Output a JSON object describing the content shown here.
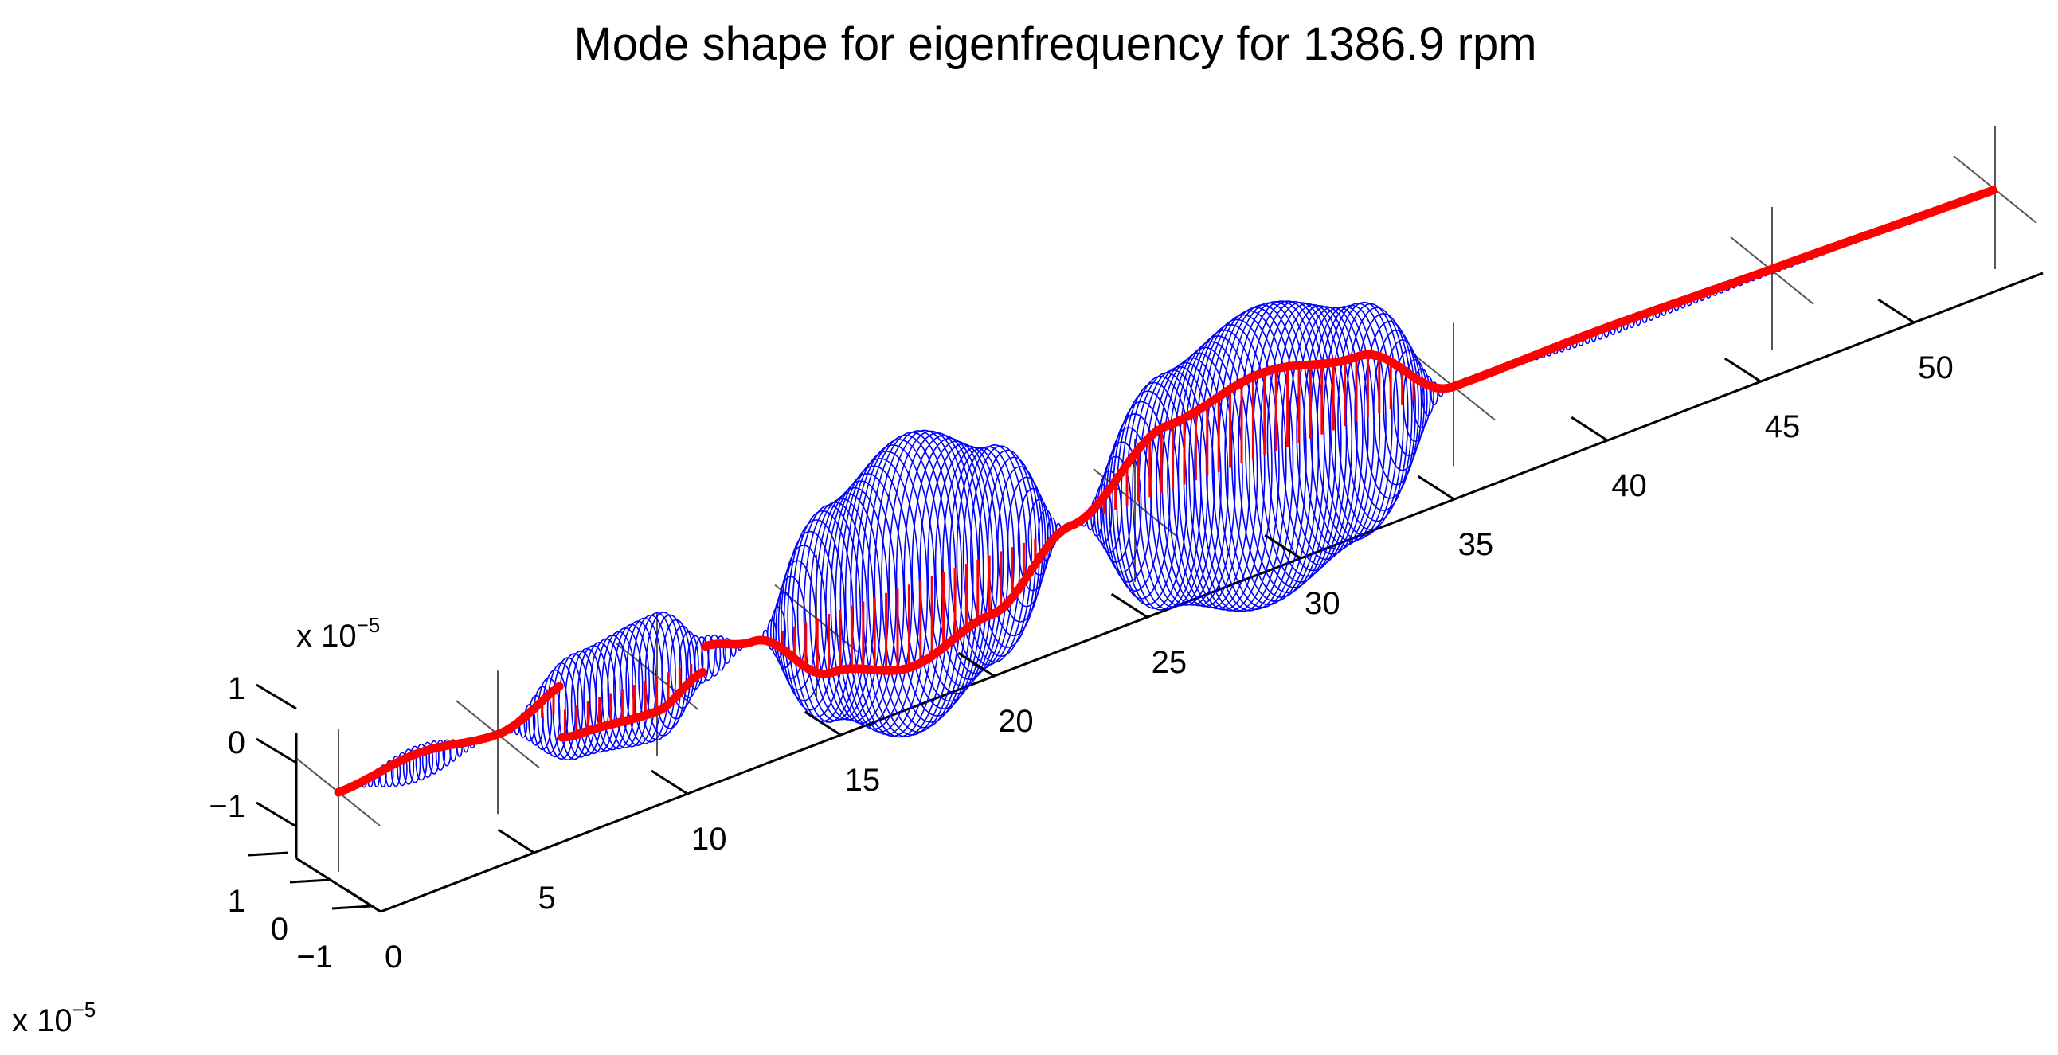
{
  "chart_data": {
    "type": "line",
    "title": "Mode shape for eigenfrequency  for 1386.9 rpm",
    "x_ticks": [
      "0",
      "5",
      "10",
      "15",
      "20",
      "25",
      "30",
      "35",
      "40",
      "45",
      "50"
    ],
    "y_ticks": [
      "−1",
      "0",
      "1"
    ],
    "z_ticks": [
      "−1",
      "0",
      "1"
    ],
    "y_exponent": {
      "base": "x 10",
      "power": "−5"
    },
    "z_exponent": {
      "base": "x 10",
      "power": "−5"
    },
    "bearing_positions": [
      0,
      5,
      10,
      15,
      25,
      35,
      45,
      52
    ],
    "mode_shape": {
      "x": [
        0,
        2.5,
        5,
        7.5,
        10,
        11.5,
        13,
        15.5,
        18,
        20.5,
        23,
        26,
        29,
        32,
        35,
        40,
        45,
        52
      ],
      "amplitude": [
        0,
        0.12,
        0,
        0.35,
        0.42,
        0.15,
        0,
        0.72,
        1.0,
        0.72,
        0,
        0.78,
        1.0,
        0.78,
        0,
        0.04,
        0.02,
        0
      ]
    },
    "series": [
      {
        "name": "",
        "color": "#0000ff"
      },
      {
        "name": "",
        "color": "#ff0000"
      }
    ]
  }
}
